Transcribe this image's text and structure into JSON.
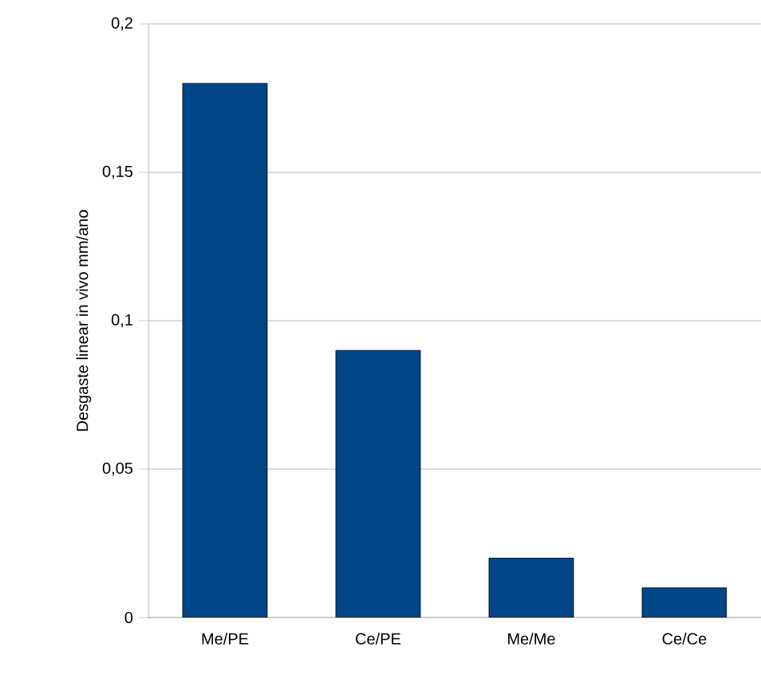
{
  "chart_data": {
    "type": "bar",
    "ylabel": "Desgaste linear in vivo mm/ano",
    "categories": [
      "Me/PE",
      "Ce/PE",
      "Me/Me",
      "Ce/Ce"
    ],
    "values": [
      0.18,
      0.09,
      0.02,
      0.01
    ],
    "color": "#004586",
    "ylim": [
      0,
      0.2
    ],
    "yticks": [
      {
        "value": 0,
        "label": "0"
      },
      {
        "value": 0.05,
        "label": "0,05"
      },
      {
        "value": 0.1,
        "label": "0,1"
      },
      {
        "value": 0.15,
        "label": "0,15"
      },
      {
        "value": 0.2,
        "label": "0,2"
      }
    ],
    "grid": "y"
  }
}
